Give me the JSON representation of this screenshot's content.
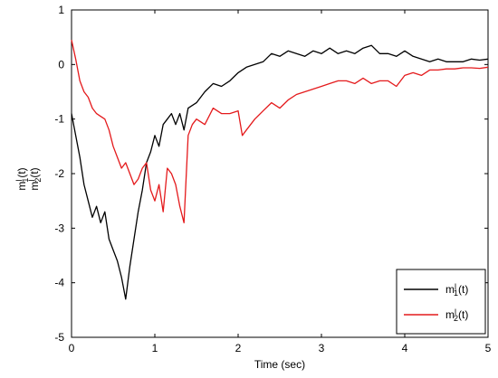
{
  "chart_data": {
    "type": "line",
    "xlabel": "Time (sec)",
    "ylabel": {
      "line1": {
        "base": "m",
        "sub": "1",
        "sup": "l",
        "tail": "(t)"
      },
      "line2": {
        "base": "m",
        "sub": "2",
        "sup": "l",
        "tail": "(t)"
      }
    },
    "xlim": [
      0,
      5
    ],
    "ylim": [
      -5,
      1
    ],
    "xticks": [
      0,
      1,
      2,
      3,
      4,
      5
    ],
    "yticks": [
      -5,
      -4,
      -3,
      -2,
      -1,
      0,
      1
    ],
    "xtick_labels": [
      "0",
      "1",
      "2",
      "3",
      "4",
      "5"
    ],
    "ytick_labels": [
      "-5",
      "-4",
      "-3",
      "-2",
      "-1",
      "0",
      "1"
    ],
    "grid": false,
    "legend_position": "bottom-right",
    "series": [
      {
        "name": {
          "base": "m",
          "sub": "1",
          "sup": "l",
          "tail": "(t)"
        },
        "color": "#000000",
        "x": [
          0,
          0.05,
          0.1,
          0.15,
          0.2,
          0.25,
          0.3,
          0.35,
          0.4,
          0.45,
          0.5,
          0.55,
          0.6,
          0.65,
          0.7,
          0.75,
          0.8,
          0.85,
          0.9,
          0.95,
          1.0,
          1.05,
          1.1,
          1.15,
          1.2,
          1.25,
          1.3,
          1.35,
          1.4,
          1.5,
          1.6,
          1.7,
          1.8,
          1.9,
          2.0,
          2.1,
          2.2,
          2.3,
          2.4,
          2.5,
          2.6,
          2.7,
          2.8,
          2.9,
          3.0,
          3.1,
          3.2,
          3.3,
          3.4,
          3.5,
          3.6,
          3.7,
          3.8,
          3.9,
          4.0,
          4.1,
          4.2,
          4.3,
          4.4,
          4.5,
          4.6,
          4.7,
          4.8,
          4.9,
          5.0
        ],
        "y": [
          -0.9,
          -1.3,
          -1.7,
          -2.2,
          -2.5,
          -2.8,
          -2.6,
          -2.9,
          -2.7,
          -3.2,
          -3.4,
          -3.6,
          -3.9,
          -4.3,
          -3.7,
          -3.2,
          -2.7,
          -2.3,
          -1.8,
          -1.6,
          -1.3,
          -1.5,
          -1.1,
          -1.0,
          -0.9,
          -1.1,
          -0.9,
          -1.2,
          -0.8,
          -0.7,
          -0.5,
          -0.35,
          -0.4,
          -0.3,
          -0.15,
          -0.05,
          0.0,
          0.05,
          0.2,
          0.15,
          0.25,
          0.2,
          0.15,
          0.25,
          0.2,
          0.3,
          0.2,
          0.25,
          0.2,
          0.3,
          0.35,
          0.2,
          0.2,
          0.15,
          0.25,
          0.15,
          0.1,
          0.05,
          0.1,
          0.05,
          0.05,
          0.05,
          0.1,
          0.08,
          0.1
        ]
      },
      {
        "name": {
          "base": "m",
          "sub": "2",
          "sup": "l",
          "tail": "(t)"
        },
        "color": "#e41a1c",
        "x": [
          0,
          0.05,
          0.1,
          0.15,
          0.2,
          0.25,
          0.3,
          0.35,
          0.4,
          0.45,
          0.5,
          0.55,
          0.6,
          0.65,
          0.7,
          0.75,
          0.8,
          0.85,
          0.9,
          0.95,
          1.0,
          1.05,
          1.1,
          1.15,
          1.2,
          1.25,
          1.3,
          1.35,
          1.4,
          1.45,
          1.5,
          1.6,
          1.7,
          1.8,
          1.9,
          2.0,
          2.05,
          2.1,
          2.2,
          2.3,
          2.4,
          2.5,
          2.6,
          2.7,
          2.8,
          2.9,
          3.0,
          3.1,
          3.2,
          3.3,
          3.4,
          3.5,
          3.6,
          3.7,
          3.8,
          3.9,
          4.0,
          4.1,
          4.2,
          4.3,
          4.4,
          4.5,
          4.6,
          4.7,
          4.8,
          4.9,
          5.0
        ],
        "y": [
          0.45,
          0.1,
          -0.3,
          -0.5,
          -0.6,
          -0.8,
          -0.9,
          -0.95,
          -1.0,
          -1.2,
          -1.5,
          -1.7,
          -1.9,
          -1.8,
          -2.0,
          -2.2,
          -2.1,
          -1.9,
          -1.8,
          -2.3,
          -2.5,
          -2.2,
          -2.7,
          -1.9,
          -2.0,
          -2.2,
          -2.6,
          -2.9,
          -1.3,
          -1.1,
          -1.0,
          -1.1,
          -0.8,
          -0.9,
          -0.9,
          -0.85,
          -1.3,
          -1.2,
          -1.0,
          -0.85,
          -0.7,
          -0.8,
          -0.65,
          -0.55,
          -0.5,
          -0.45,
          -0.4,
          -0.35,
          -0.3,
          -0.3,
          -0.35,
          -0.25,
          -0.35,
          -0.3,
          -0.3,
          -0.4,
          -0.2,
          -0.15,
          -0.2,
          -0.1,
          -0.1,
          -0.08,
          -0.08,
          -0.06,
          -0.06,
          -0.07,
          -0.05
        ]
      }
    ]
  }
}
